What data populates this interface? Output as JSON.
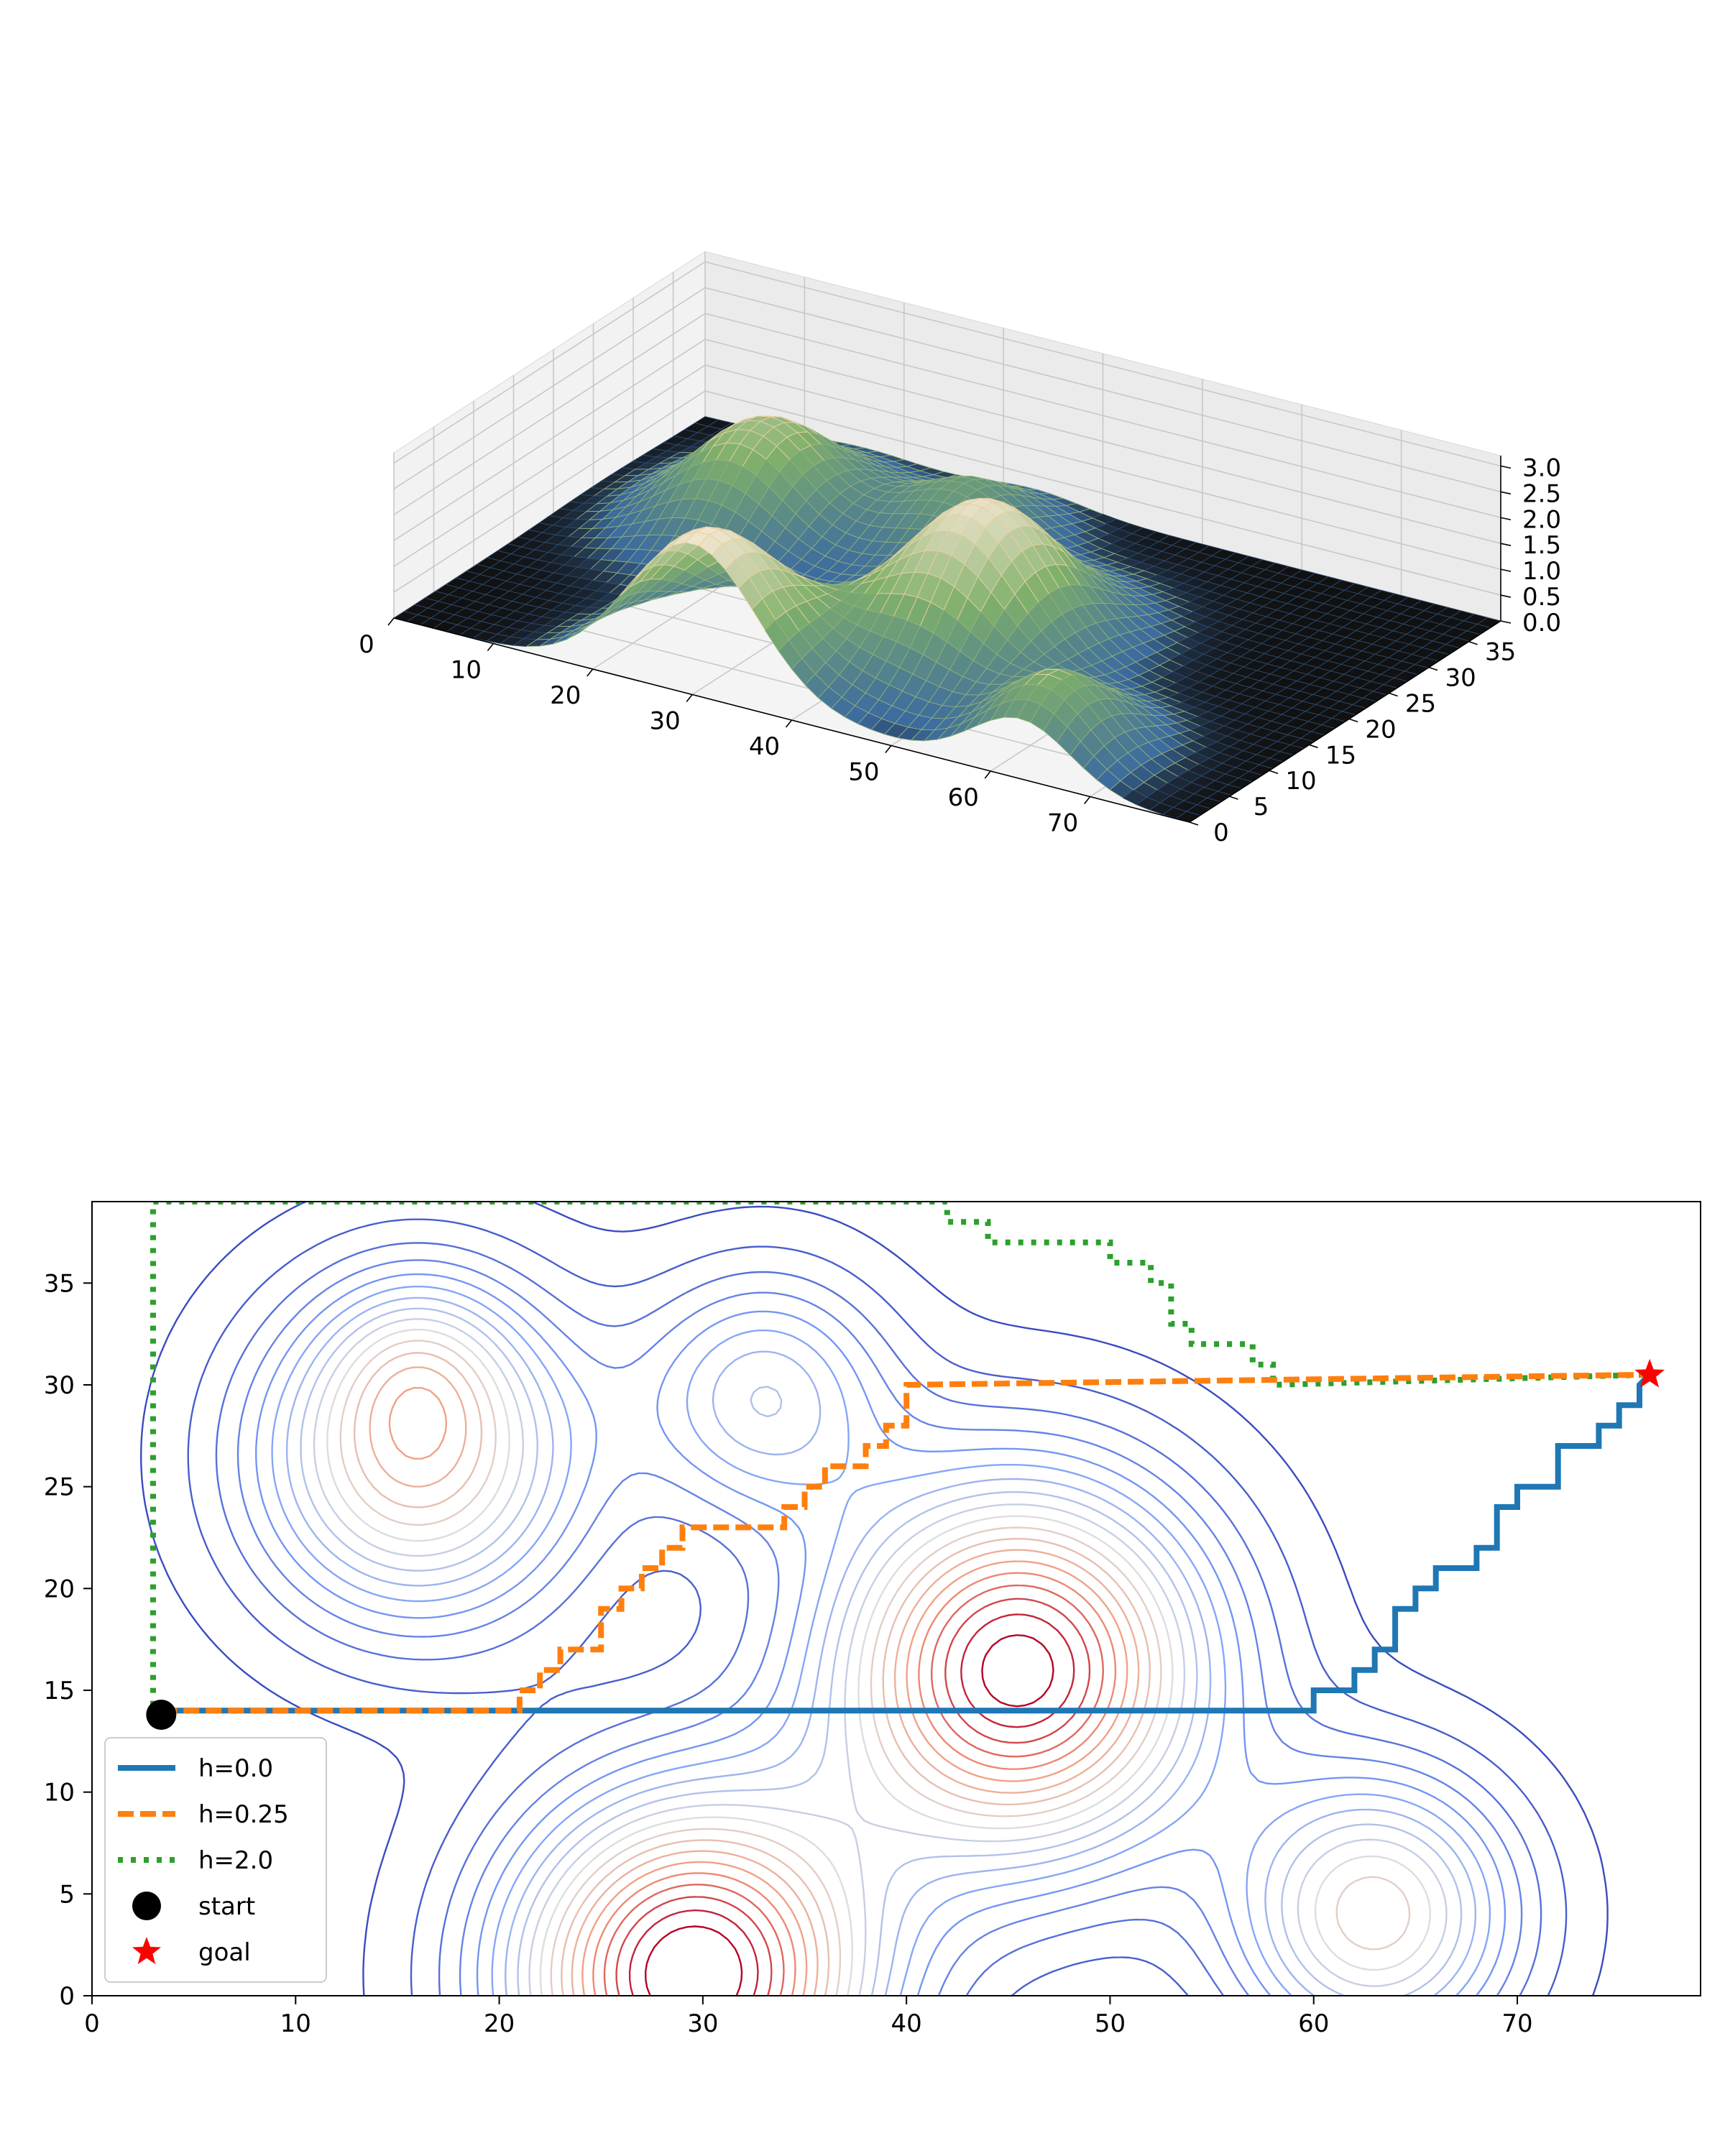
{
  "chart_data": [
    {
      "type": "surface",
      "title": "",
      "xlabel": "",
      "ylabel": "",
      "zlabel": "",
      "x_ticks": [
        0,
        10,
        20,
        30,
        40,
        50,
        60,
        70
      ],
      "y_ticks": [
        0,
        5,
        10,
        15,
        20,
        25,
        30,
        35
      ],
      "z_ticks": [
        "0.0",
        "0.5",
        "1.0",
        "1.5",
        "2.0",
        "2.5",
        "3.0"
      ],
      "xlim": [
        0,
        80
      ],
      "ylim": [
        0,
        39
      ],
      "zlim": [
        0,
        3.2
      ],
      "grid": true,
      "colors": {
        "low": "#111111",
        "mid": "#3b6aa0",
        "green": "#7fb06a",
        "high": "#f3e6d0",
        "blocks": "#c8dde0"
      },
      "peaks": [
        {
          "x": 30,
          "y": 1.5,
          "h": 3.0,
          "s": 6.5
        },
        {
          "x": 46,
          "y": 16,
          "h": 2.9,
          "s": 6.5
        },
        {
          "x": 16,
          "y": 26,
          "h": 2.0,
          "s": 6.0
        },
        {
          "x": 63,
          "y": 4,
          "h": 1.6,
          "s": 5.0
        },
        {
          "x": 33,
          "y": 30,
          "h": 1.2,
          "s": 5.0
        }
      ]
    },
    {
      "type": "contour",
      "title": "",
      "xlabel": "",
      "ylabel": "",
      "x_ticks": [
        0,
        10,
        20,
        30,
        40,
        50,
        60,
        70
      ],
      "y_ticks": [
        0,
        5,
        10,
        15,
        20,
        25,
        30,
        35
      ],
      "xlim": [
        0,
        79
      ],
      "ylim": [
        0,
        39
      ],
      "grid": false,
      "colormap": "coolwarm",
      "levels": [
        0.1,
        0.25,
        0.4,
        0.55,
        0.7,
        0.85,
        1.0,
        1.15,
        1.3,
        1.45,
        1.6,
        1.75,
        1.9,
        2.05,
        2.2,
        2.35,
        2.5,
        2.65,
        2.8
      ],
      "legend_position": "lower-left",
      "series": [
        {
          "name": "h=0.0",
          "color": "#1f77b4",
          "style": "solid",
          "points": [
            [
              3.4,
              14
            ],
            [
              60,
              14
            ],
            [
              60,
              15
            ],
            [
              62,
              15
            ],
            [
              62,
              16
            ],
            [
              63,
              16
            ],
            [
              63,
              17
            ],
            [
              64,
              17
            ],
            [
              64,
              19
            ],
            [
              65,
              19
            ],
            [
              65,
              20
            ],
            [
              66,
              20
            ],
            [
              66,
              21
            ],
            [
              68,
              21
            ],
            [
              68,
              22
            ],
            [
              69,
              22
            ],
            [
              69,
              24
            ],
            [
              70,
              24
            ],
            [
              70,
              25
            ],
            [
              72,
              25
            ],
            [
              72,
              27
            ],
            [
              74,
              27
            ],
            [
              74,
              28
            ],
            [
              75,
              28
            ],
            [
              75,
              29
            ],
            [
              76,
              29
            ],
            [
              76,
              30
            ],
            [
              76.5,
              30.5
            ]
          ]
        },
        {
          "name": "h=0.25",
          "color": "#ff7f0e",
          "style": "dashed",
          "points": [
            [
              3.4,
              14
            ],
            [
              21,
              14
            ],
            [
              21,
              15
            ],
            [
              22,
              15
            ],
            [
              22,
              16
            ],
            [
              23,
              16
            ],
            [
              23,
              17
            ],
            [
              25,
              17
            ],
            [
              25,
              19
            ],
            [
              26,
              19
            ],
            [
              26,
              20
            ],
            [
              27,
              20
            ],
            [
              27,
              21
            ],
            [
              28,
              21
            ],
            [
              28,
              22
            ],
            [
              29,
              22
            ],
            [
              29,
              23
            ],
            [
              34,
              23
            ],
            [
              34,
              24
            ],
            [
              35,
              24
            ],
            [
              35,
              25
            ],
            [
              36,
              25
            ],
            [
              36,
              26
            ],
            [
              38,
              26
            ],
            [
              38,
              27
            ],
            [
              39,
              27
            ],
            [
              39,
              28
            ],
            [
              40,
              28
            ],
            [
              40,
              30
            ],
            [
              76.5,
              30.5
            ]
          ]
        },
        {
          "name": "h=2.0",
          "color": "#2ca02c",
          "style": "dotted",
          "points": [
            [
              3.4,
              14
            ],
            [
              3,
              14
            ],
            [
              3,
              39
            ],
            [
              42,
              39
            ],
            [
              42,
              38
            ],
            [
              44,
              38
            ],
            [
              44,
              37
            ],
            [
              50,
              37
            ],
            [
              50,
              36
            ],
            [
              52,
              36
            ],
            [
              52,
              35
            ],
            [
              53,
              35
            ],
            [
              53,
              33
            ],
            [
              54,
              33
            ],
            [
              54,
              32
            ],
            [
              57,
              32
            ],
            [
              57,
              31
            ],
            [
              58,
              31
            ],
            [
              58,
              30
            ],
            [
              76.5,
              30.5
            ]
          ]
        }
      ],
      "markers": [
        {
          "name": "start",
          "x": 3.4,
          "y": 13.8,
          "color": "#000000",
          "shape": "circle"
        },
        {
          "name": "goal",
          "x": 76.5,
          "y": 30.5,
          "color": "#ff0000",
          "shape": "star"
        }
      ],
      "hills": [
        {
          "x": 29.5,
          "y": 1,
          "h": 3.0,
          "s": 6.2
        },
        {
          "x": 45.5,
          "y": 16,
          "h": 2.9,
          "s": 6.4
        },
        {
          "x": 16,
          "y": 26.5,
          "h": 1.9,
          "s": 5.6
        },
        {
          "x": 16,
          "y": 31,
          "h": 0.5,
          "s": 3.0
        },
        {
          "x": 63,
          "y": 4,
          "h": 1.7,
          "s": 4.8
        },
        {
          "x": 33,
          "y": 29.5,
          "h": 1.1,
          "s": 4.2
        }
      ]
    }
  ]
}
